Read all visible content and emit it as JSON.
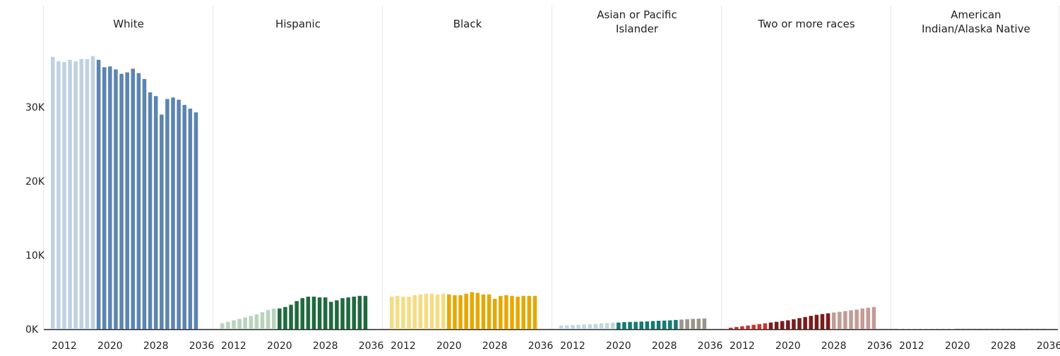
{
  "chart_data": {
    "type": "bar",
    "layout": "small-multiples",
    "y_ticks": [
      "0K",
      "10K",
      "20K",
      "30K"
    ],
    "ylim": [
      0,
      40000
    ],
    "x_tick_labels": [
      "2012",
      "2020",
      "2028",
      "2036"
    ],
    "years": [
      2010,
      2011,
      2012,
      2013,
      2014,
      2015,
      2016,
      2017,
      2018,
      2019,
      2020,
      2021,
      2022,
      2023,
      2024,
      2025,
      2026,
      2027,
      2028,
      2029,
      2030,
      2031,
      2032,
      2033,
      2034,
      2035,
      2036,
      2037,
      2038
    ],
    "panels": [
      {
        "title_lines": [
          "White"
        ],
        "colors": {
          "historical": "#bfd1e3",
          "projected": "#5b84b1"
        },
        "projected_from_index": 8,
        "values": [
          36800,
          36200,
          36100,
          36400,
          36200,
          36500,
          36500,
          36900,
          36400,
          35400,
          35500,
          35100,
          34500,
          34700,
          35200,
          34600,
          33800,
          32000,
          31500,
          29000,
          31100,
          31300,
          31000,
          30300,
          29800,
          29300,
          null,
          null,
          null
        ]
      },
      {
        "title_lines": [
          "Hispanic"
        ],
        "colors": {
          "historical": "#b8d4be",
          "projected": "#1f6a3e"
        },
        "projected_from_index": 10,
        "values": [
          800,
          1000,
          1200,
          1400,
          1600,
          1800,
          2000,
          2300,
          2600,
          2800,
          2800,
          3000,
          3300,
          3800,
          4200,
          4400,
          4400,
          4300,
          4300,
          3700,
          3900,
          4200,
          4300,
          4400,
          4500,
          4500,
          null,
          null,
          null
        ]
      },
      {
        "title_lines": [
          "Black"
        ],
        "colors": {
          "historical": "#f5dc83",
          "projected": "#e6a800"
        },
        "projected_from_index": 10,
        "values": [
          4400,
          4500,
          4400,
          4400,
          4600,
          4700,
          4800,
          4800,
          4700,
          4800,
          4700,
          4600,
          4600,
          4800,
          5000,
          4900,
          4700,
          4700,
          4100,
          4500,
          4600,
          4500,
          4400,
          4500,
          4500,
          4500,
          null,
          null,
          null
        ]
      },
      {
        "title_lines": [
          "Asian or Pacific",
          "Islander"
        ],
        "colors": {
          "historical": "#bedad8",
          "projected": "#157a74",
          "late": "#9a948a"
        },
        "projected_from_index": 10,
        "late_from_index": 21,
        "values": [
          500,
          520,
          560,
          600,
          640,
          680,
          720,
          780,
          820,
          880,
          900,
          950,
          980,
          1000,
          1030,
          1060,
          1100,
          1140,
          1170,
          1200,
          1250,
          1300,
          1350,
          1400,
          1420,
          1450,
          null,
          null,
          null
        ]
      },
      {
        "title_lines": [
          "Two or more races"
        ],
        "colors": {
          "early": "#cc3333",
          "projected": "#7a1c1c",
          "late": "#c39b96"
        },
        "early_until_index": 7,
        "late_from_index": 18,
        "values": [
          200,
          300,
          400,
          500,
          600,
          700,
          800,
          900,
          1000,
          1100,
          1200,
          1350,
          1500,
          1650,
          1800,
          1950,
          2050,
          2150,
          2250,
          2350,
          2450,
          2550,
          2650,
          2800,
          2900,
          3000,
          null,
          null,
          null
        ]
      },
      {
        "title_lines": [
          "American",
          "Indian/Alaska Native"
        ],
        "colors": {
          "historical": "#e6c6a6",
          "projected": "#8f5a3c"
        },
        "projected_from_index": 10,
        "values": [
          40,
          40,
          40,
          40,
          40,
          40,
          40,
          40,
          40,
          40,
          40,
          40,
          40,
          40,
          40,
          40,
          40,
          40,
          40,
          40,
          40,
          40,
          40,
          40,
          40,
          40,
          null,
          null,
          null
        ]
      }
    ],
    "grid": false,
    "legend": "none"
  }
}
